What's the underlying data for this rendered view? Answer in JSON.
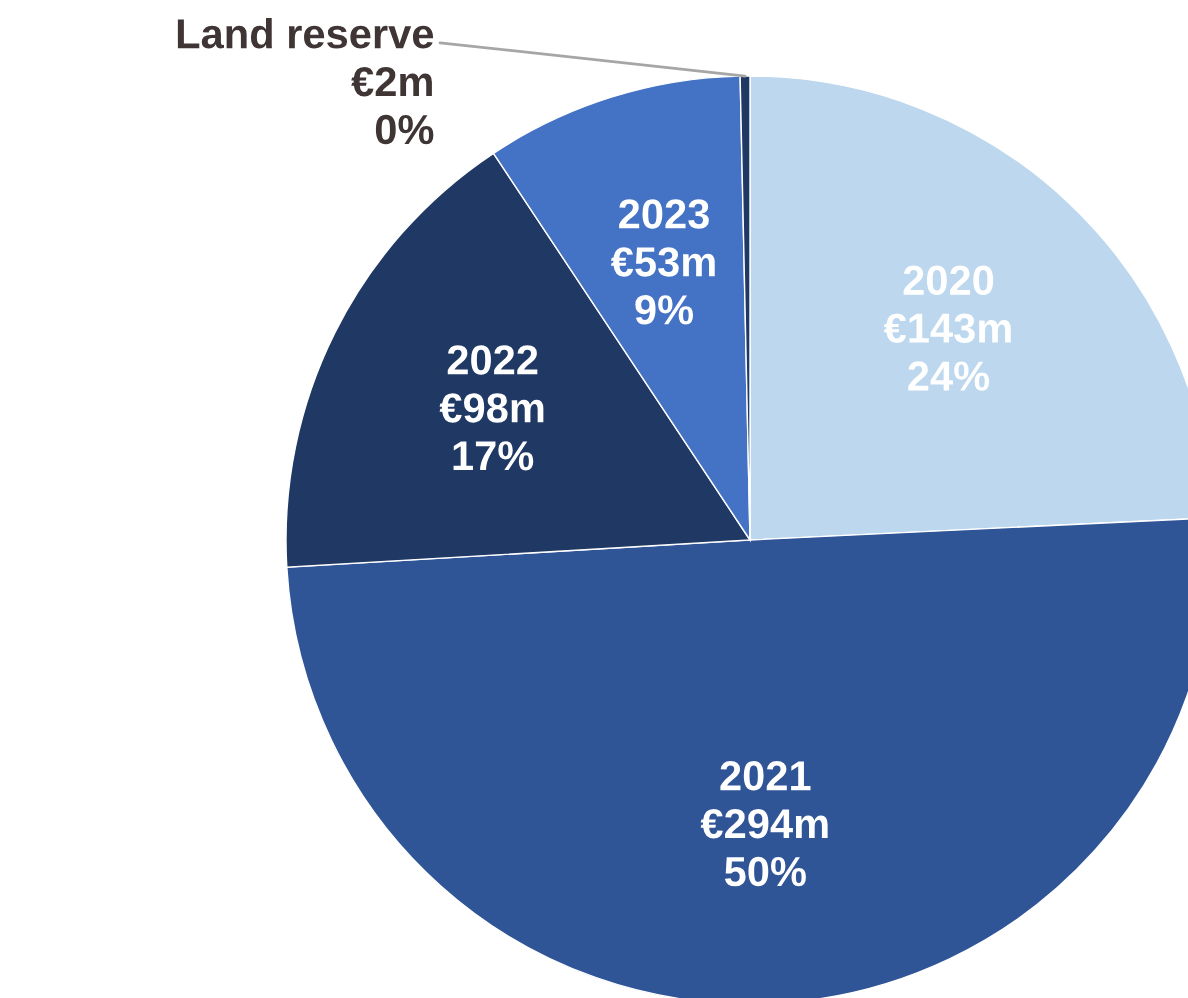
{
  "chart_data": {
    "type": "pie",
    "categories": [
      "2020",
      "2021",
      "2022",
      "2023",
      "Land reserve"
    ],
    "values": [
      143,
      294,
      98,
      53,
      2
    ],
    "value_labels": [
      "€143m",
      "€294m",
      "€98m",
      "€53m",
      "€2m"
    ],
    "annotations": [
      "24%",
      "50%",
      "17%",
      "9%",
      "0%"
    ],
    "colors": [
      "#bdd7ee",
      "#2f5597",
      "#203864",
      "#4472c4",
      "#1f3864"
    ]
  }
}
